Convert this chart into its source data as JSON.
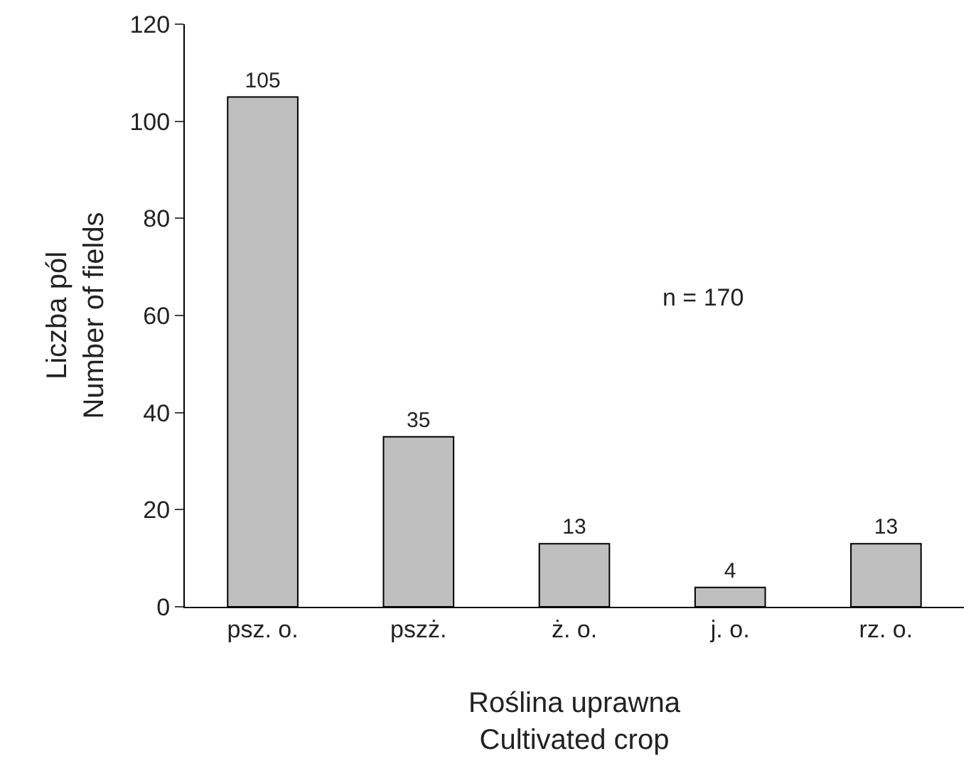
{
  "chart_data": {
    "type": "bar",
    "categories": [
      "psz. o.",
      "pszż.",
      "ż. o.",
      "j. o.",
      "rz. o."
    ],
    "values": [
      105,
      35,
      13,
      4,
      13
    ],
    "color": "#bfbfbf",
    "ylim": [
      0,
      120
    ],
    "yticks": [
      0,
      20,
      40,
      60,
      80,
      100,
      120
    ],
    "xlabel": "Roślina uprawna\nCultivated crop",
    "ylabel": "Liczba pól\nNumber of fields",
    "annotations": [
      "n = 170"
    ],
    "data_labels": true
  }
}
